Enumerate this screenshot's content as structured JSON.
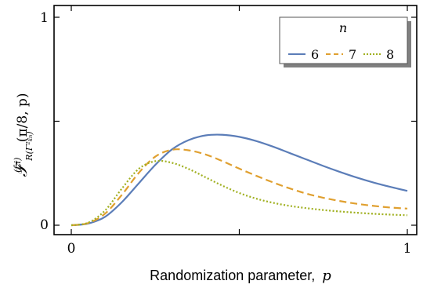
{
  "chart_data": {
    "type": "line",
    "xlabel_text": "Randomization parameter,",
    "xlabel_var": "p",
    "ylabel_main": "𝒯",
    "ylabel_sup": "(f,i)",
    "ylabel_sub": "R(Γ²ₖₙ)",
    "ylabel_args": "(π/8, p)",
    "xlim": [
      0,
      1
    ],
    "ylim": [
      0,
      1
    ],
    "x_ticks": [
      "0",
      "1"
    ],
    "y_ticks": [
      "0",
      "1"
    ],
    "legend": {
      "title": "n",
      "placement": "top-right"
    },
    "grid": false,
    "x": [
      0.0,
      0.05,
      0.1,
      0.15,
      0.2,
      0.25,
      0.3,
      0.35,
      0.4,
      0.45,
      0.5,
      0.55,
      0.6,
      0.65,
      0.7,
      0.75,
      0.8,
      0.85,
      0.9,
      0.95,
      1.0
    ],
    "series": [
      {
        "name": "6",
        "color": "#5b7db8",
        "style": "solid",
        "values": [
          0.0,
          0.008,
          0.04,
          0.11,
          0.2,
          0.29,
          0.365,
          0.41,
          0.432,
          0.435,
          0.425,
          0.405,
          0.378,
          0.347,
          0.316,
          0.285,
          0.256,
          0.229,
          0.205,
          0.184,
          0.165
        ]
      },
      {
        "name": "7",
        "color": "#e0a030",
        "style": "dashed",
        "values": [
          0.0,
          0.01,
          0.055,
          0.145,
          0.25,
          0.33,
          0.363,
          0.36,
          0.34,
          0.308,
          0.272,
          0.238,
          0.206,
          0.177,
          0.152,
          0.132,
          0.116,
          0.103,
          0.093,
          0.085,
          0.08
        ]
      },
      {
        "name": "8",
        "color": "#a0b020",
        "style": "dotted",
        "values": [
          0.0,
          0.012,
          0.07,
          0.175,
          0.27,
          0.308,
          0.3,
          0.27,
          0.23,
          0.19,
          0.155,
          0.128,
          0.108,
          0.093,
          0.082,
          0.073,
          0.066,
          0.06,
          0.055,
          0.051,
          0.048
        ]
      }
    ]
  }
}
